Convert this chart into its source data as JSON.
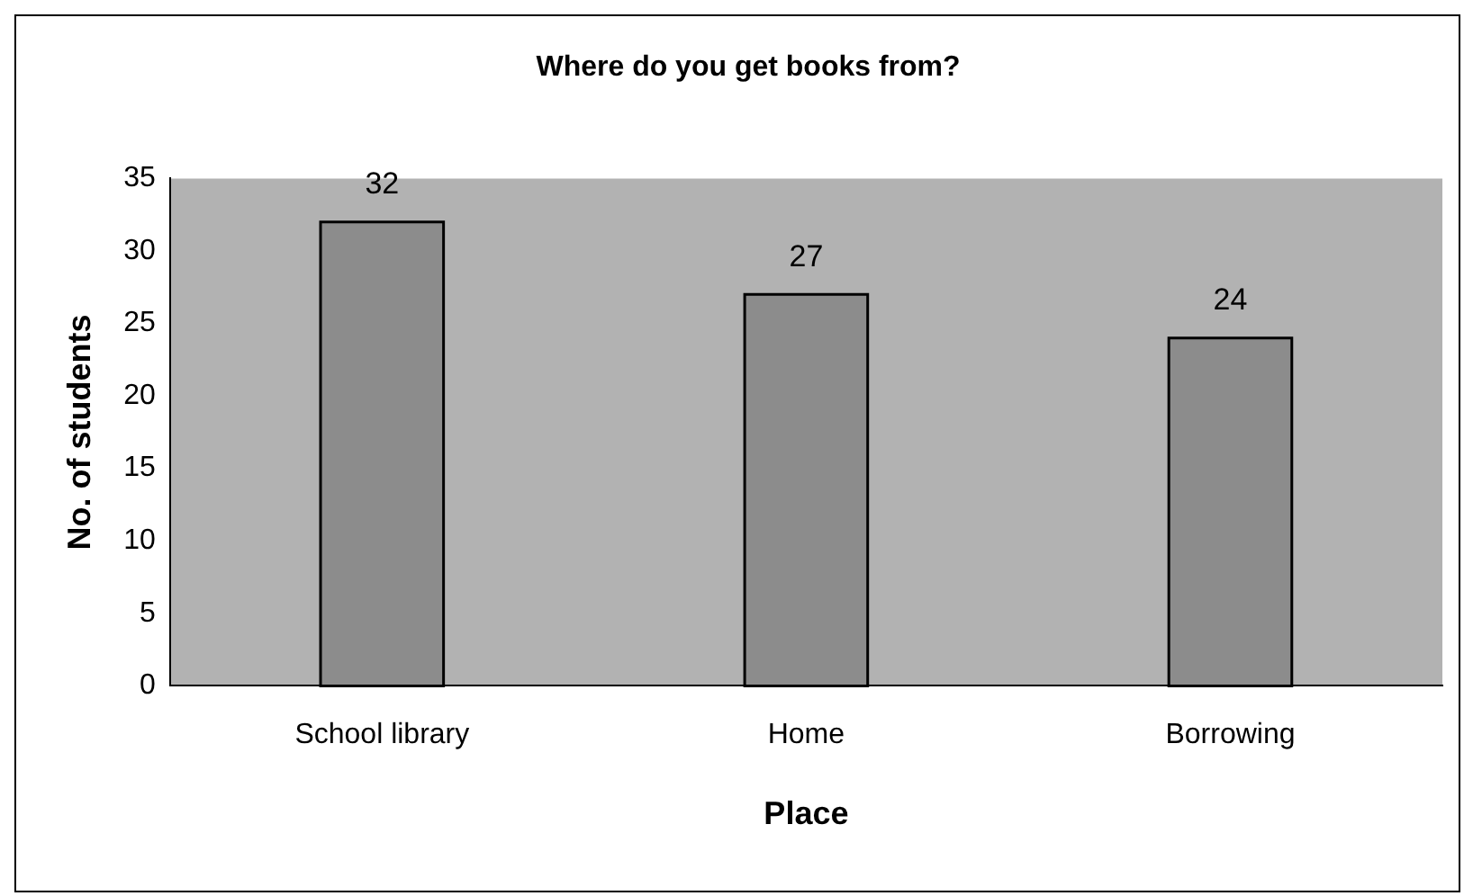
{
  "chart_data": {
    "type": "bar",
    "title": "Where do you get books from?",
    "xlabel": "Place",
    "ylabel": "No. of students",
    "categories": [
      "School library",
      "Home",
      "Borrowing"
    ],
    "values": [
      32,
      27,
      24
    ],
    "color": "#8c8c8c",
    "ylim": [
      0,
      35
    ],
    "yticks": [
      0,
      5,
      10,
      15,
      20,
      25,
      30,
      35
    ],
    "grid": false,
    "legend": false,
    "data_labels": true
  }
}
